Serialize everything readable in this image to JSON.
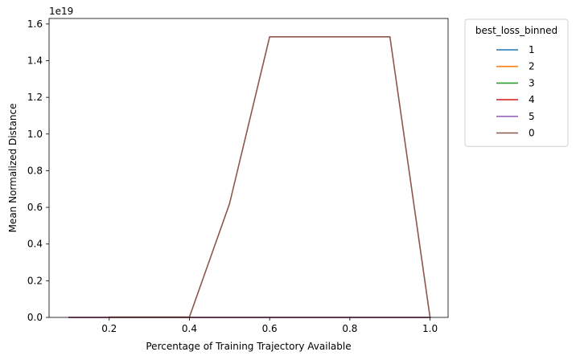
{
  "chart_data": {
    "type": "line",
    "title": "",
    "xlabel": "Percentage of Training Trajectory Available",
    "ylabel": "Mean Normalized Distance",
    "y_offset_label": "1e19",
    "xlim": [
      0.05,
      1.045
    ],
    "ylim": [
      0,
      1.63
    ],
    "x_ticks": [
      0.2,
      0.4,
      0.6,
      0.8,
      1.0
    ],
    "x_tick_labels": [
      "0.2",
      "0.4",
      "0.6",
      "0.8",
      "1.0"
    ],
    "y_ticks": [
      0,
      0.2,
      0.4,
      0.6,
      0.8,
      1.0,
      1.2,
      1.4,
      1.6
    ],
    "y_tick_labels": [
      "0.0",
      "0.2",
      "0.4",
      "0.6",
      "0.8",
      "1.0",
      "1.2",
      "1.4",
      "1.6"
    ],
    "grid": false,
    "legend": {
      "title": "best_loss_binned",
      "placement": "outside-right-top"
    },
    "series": [
      {
        "name": "1",
        "color": "#1f77b4",
        "x": [
          0.1,
          0.2,
          0.3,
          0.4,
          0.5,
          0.6,
          0.7,
          0.8,
          0.9,
          1.0
        ],
        "y": [
          0,
          0,
          0,
          0,
          0,
          0,
          0,
          0,
          0,
          0
        ]
      },
      {
        "name": "2",
        "color": "#ff7f0e",
        "x": [
          0.1,
          0.2,
          0.3,
          0.4,
          0.5,
          0.6,
          0.7,
          0.8,
          0.9,
          1.0
        ],
        "y": [
          0,
          0,
          0,
          0,
          0,
          0,
          0,
          0,
          0,
          0
        ]
      },
      {
        "name": "3",
        "color": "#2ca02c",
        "x": [
          0.1,
          0.2,
          0.3,
          0.4,
          0.5,
          0.6,
          0.7,
          0.8,
          0.9,
          1.0
        ],
        "y": [
          0,
          0,
          0,
          0,
          0,
          0,
          0,
          0,
          0,
          0
        ]
      },
      {
        "name": "4",
        "color": "#d62728",
        "x": [
          0.1,
          0.2,
          0.3,
          0.4,
          0.5,
          0.6,
          0.7,
          0.8,
          0.9,
          1.0
        ],
        "y": [
          0,
          0,
          0,
          0,
          0,
          0,
          0,
          0,
          0,
          0
        ]
      },
      {
        "name": "5",
        "color": "#9467bd",
        "x": [
          0.1,
          0.2,
          0.3,
          0.4,
          0.5,
          0.6,
          0.7,
          0.8,
          0.9,
          1.0
        ],
        "y": [
          0,
          0,
          0,
          0,
          0,
          0,
          0,
          0,
          0,
          0
        ]
      },
      {
        "name": "0",
        "color": "#8c564b",
        "x": [
          0.2,
          0.3,
          0.4,
          0.5,
          0.6,
          0.7,
          0.8,
          0.9,
          1.0
        ],
        "y": [
          0.002,
          0.002,
          0.002,
          0.62,
          1.53,
          1.53,
          1.53,
          1.53,
          0
        ]
      }
    ]
  }
}
